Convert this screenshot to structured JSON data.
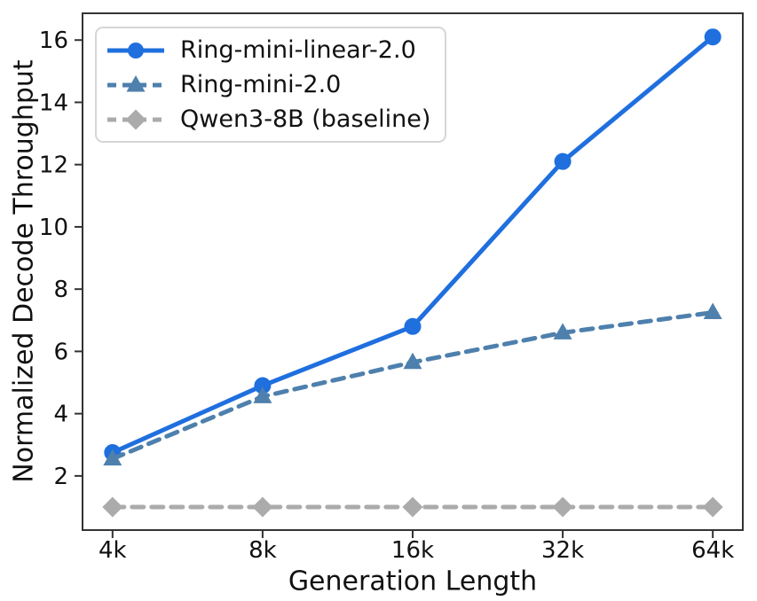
{
  "figure": {
    "background": "#ffffff",
    "spine_color": "#333333",
    "text_color": "#111111",
    "legend_border_color": "#d6d6d6"
  },
  "chart_data": {
    "type": "line",
    "title": "",
    "xlabel": "Generation Length",
    "ylabel": "Normalized Decode Throughput",
    "categories": [
      "4k",
      "8k",
      "16k",
      "32k",
      "64k"
    ],
    "yticks": [
      2,
      4,
      6,
      8,
      10,
      12,
      14,
      16
    ],
    "ylim": [
      0.26,
      16.86
    ],
    "xlim": [
      -0.2,
      4.2
    ],
    "grid": false,
    "legend_position": "upper-left",
    "series": [
      {
        "name": "Ring-mini-linear-2.0",
        "values": [
          2.75,
          4.9,
          6.8,
          12.1,
          16.1
        ],
        "color": "#1f6fde",
        "line_style": "solid",
        "marker": "circle"
      },
      {
        "name": "Ring-mini-2.0",
        "values": [
          2.55,
          4.55,
          5.65,
          6.6,
          7.25
        ],
        "color": "#4e80ad",
        "line_style": "dashed",
        "marker": "triangle"
      },
      {
        "name": "Qwen3-8B (baseline)",
        "values": [
          1.0,
          1.0,
          1.0,
          1.0,
          1.0
        ],
        "color": "#ababab",
        "line_style": "dashed",
        "marker": "diamond"
      }
    ]
  }
}
